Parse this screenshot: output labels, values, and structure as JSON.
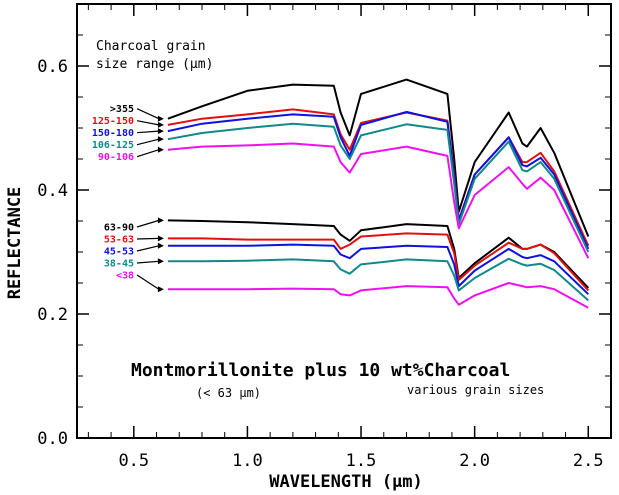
{
  "chart_data": {
    "type": "line",
    "xlabel": "WAVELENGTH (μm)",
    "ylabel": "REFLECTANCE",
    "xlim": [
      0.25,
      2.6
    ],
    "ylim": [
      0.0,
      0.7
    ],
    "xticks": [
      0.5,
      1.0,
      1.5,
      2.0,
      2.5
    ],
    "xtick_labels": [
      "0.5",
      "1.0",
      "1.5",
      "2.0",
      "2.5"
    ],
    "yticks": [
      0.0,
      0.2,
      0.4,
      0.6
    ],
    "ytick_labels": [
      "0.0",
      "0.2",
      "0.4",
      "0.6"
    ],
    "grid": false,
    "legend_title": [
      "Charcoal grain",
      "size range (μm)"
    ],
    "annotations": {
      "main": "Montmorillonite plus 10 wt%Charcoal",
      "sub_left": "(< 63 μm)",
      "sub_right": "various grain sizes"
    },
    "x": [
      0.65,
      0.8,
      1.0,
      1.2,
      1.38,
      1.41,
      1.45,
      1.5,
      1.7,
      1.88,
      1.91,
      1.93,
      2.0,
      2.15,
      2.21,
      2.23,
      2.29,
      2.35,
      2.5
    ],
    "series": [
      {
        "name": ">355",
        "color": "#000000",
        "group": "upper",
        "values": [
          0.515,
          0.535,
          0.56,
          0.57,
          0.568,
          0.525,
          0.488,
          0.555,
          0.578,
          0.555,
          0.45,
          0.365,
          0.445,
          0.525,
          0.475,
          0.47,
          0.5,
          0.46,
          0.325
        ]
      },
      {
        "name": "125-150",
        "color": "#e01010",
        "group": "upper",
        "values": [
          0.505,
          0.515,
          0.522,
          0.53,
          0.522,
          0.49,
          0.465,
          0.508,
          0.525,
          0.512,
          0.425,
          0.352,
          0.425,
          0.485,
          0.445,
          0.445,
          0.46,
          0.43,
          0.31
        ]
      },
      {
        "name": "150-180",
        "color": "#1010e0",
        "group": "upper",
        "values": [
          0.495,
          0.507,
          0.515,
          0.522,
          0.518,
          0.485,
          0.455,
          0.505,
          0.526,
          0.51,
          0.42,
          0.35,
          0.425,
          0.485,
          0.44,
          0.438,
          0.452,
          0.425,
          0.305
        ]
      },
      {
        "name": "106-125",
        "color": "#10898a",
        "group": "upper",
        "values": [
          0.482,
          0.492,
          0.5,
          0.507,
          0.502,
          0.472,
          0.45,
          0.488,
          0.506,
          0.497,
          0.41,
          0.345,
          0.418,
          0.478,
          0.432,
          0.43,
          0.445,
          0.418,
          0.3
        ]
      },
      {
        "name": "90-106",
        "color": "#ee10ee",
        "group": "upper",
        "values": [
          0.465,
          0.47,
          0.472,
          0.475,
          0.47,
          0.445,
          0.428,
          0.458,
          0.47,
          0.455,
          0.38,
          0.338,
          0.392,
          0.437,
          0.41,
          0.402,
          0.42,
          0.4,
          0.29
        ]
      },
      {
        "name": "63-90",
        "color": "#000000",
        "group": "lower",
        "values": [
          0.351,
          0.35,
          0.348,
          0.345,
          0.342,
          0.328,
          0.318,
          0.335,
          0.345,
          0.342,
          0.305,
          0.258,
          0.282,
          0.323,
          0.305,
          0.305,
          0.312,
          0.3,
          0.242
        ]
      },
      {
        "name": "53-63",
        "color": "#e01010",
        "group": "lower",
        "values": [
          0.322,
          0.322,
          0.32,
          0.32,
          0.32,
          0.305,
          0.312,
          0.325,
          0.33,
          0.328,
          0.298,
          0.255,
          0.278,
          0.315,
          0.305,
          0.305,
          0.312,
          0.298,
          0.238
        ]
      },
      {
        "name": "45-53",
        "color": "#1010e0",
        "group": "lower",
        "values": [
          0.31,
          0.31,
          0.31,
          0.312,
          0.31,
          0.296,
          0.29,
          0.305,
          0.31,
          0.308,
          0.28,
          0.245,
          0.27,
          0.305,
          0.292,
          0.29,
          0.295,
          0.285,
          0.232
        ]
      },
      {
        "name": "38-45",
        "color": "#10898a",
        "group": "lower",
        "values": [
          0.285,
          0.285,
          0.286,
          0.288,
          0.285,
          0.272,
          0.265,
          0.28,
          0.288,
          0.285,
          0.262,
          0.238,
          0.258,
          0.289,
          0.28,
          0.278,
          0.281,
          0.271,
          0.222
        ]
      },
      {
        "name": "<38",
        "color": "#ee10ee",
        "group": "lower",
        "values": [
          0.24,
          0.24,
          0.24,
          0.241,
          0.24,
          0.232,
          0.23,
          0.238,
          0.245,
          0.243,
          0.225,
          0.215,
          0.23,
          0.25,
          0.245,
          0.243,
          0.245,
          0.24,
          0.21
        ]
      }
    ]
  }
}
